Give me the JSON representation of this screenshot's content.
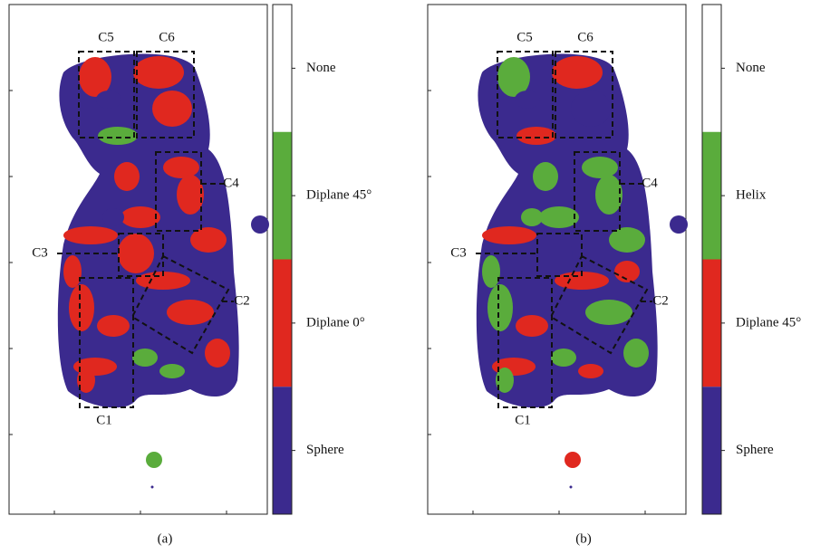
{
  "panels": [
    {
      "caption": "(a)",
      "regions": [
        "C1",
        "C2",
        "C3",
        "C4",
        "C5",
        "C6"
      ],
      "legend": [
        {
          "label": "None",
          "color": "#ffffff"
        },
        {
          "label": "Diplane 45°",
          "color": "#5aac3c"
        },
        {
          "label": "Diplane 0°",
          "color": "#e0281f"
        },
        {
          "label": "Sphere",
          "color": "#3b2a8e"
        }
      ]
    },
    {
      "caption": "(b)",
      "regions": [
        "C1",
        "C2",
        "C3",
        "C4",
        "C5",
        "C6"
      ],
      "legend": [
        {
          "label": "None",
          "color": "#ffffff"
        },
        {
          "label": "Helix",
          "color": "#5aac3c"
        },
        {
          "label": "Diplane 45°",
          "color": "#e0281f"
        },
        {
          "label": "Sphere",
          "color": "#3b2a8e"
        }
      ]
    }
  ]
}
